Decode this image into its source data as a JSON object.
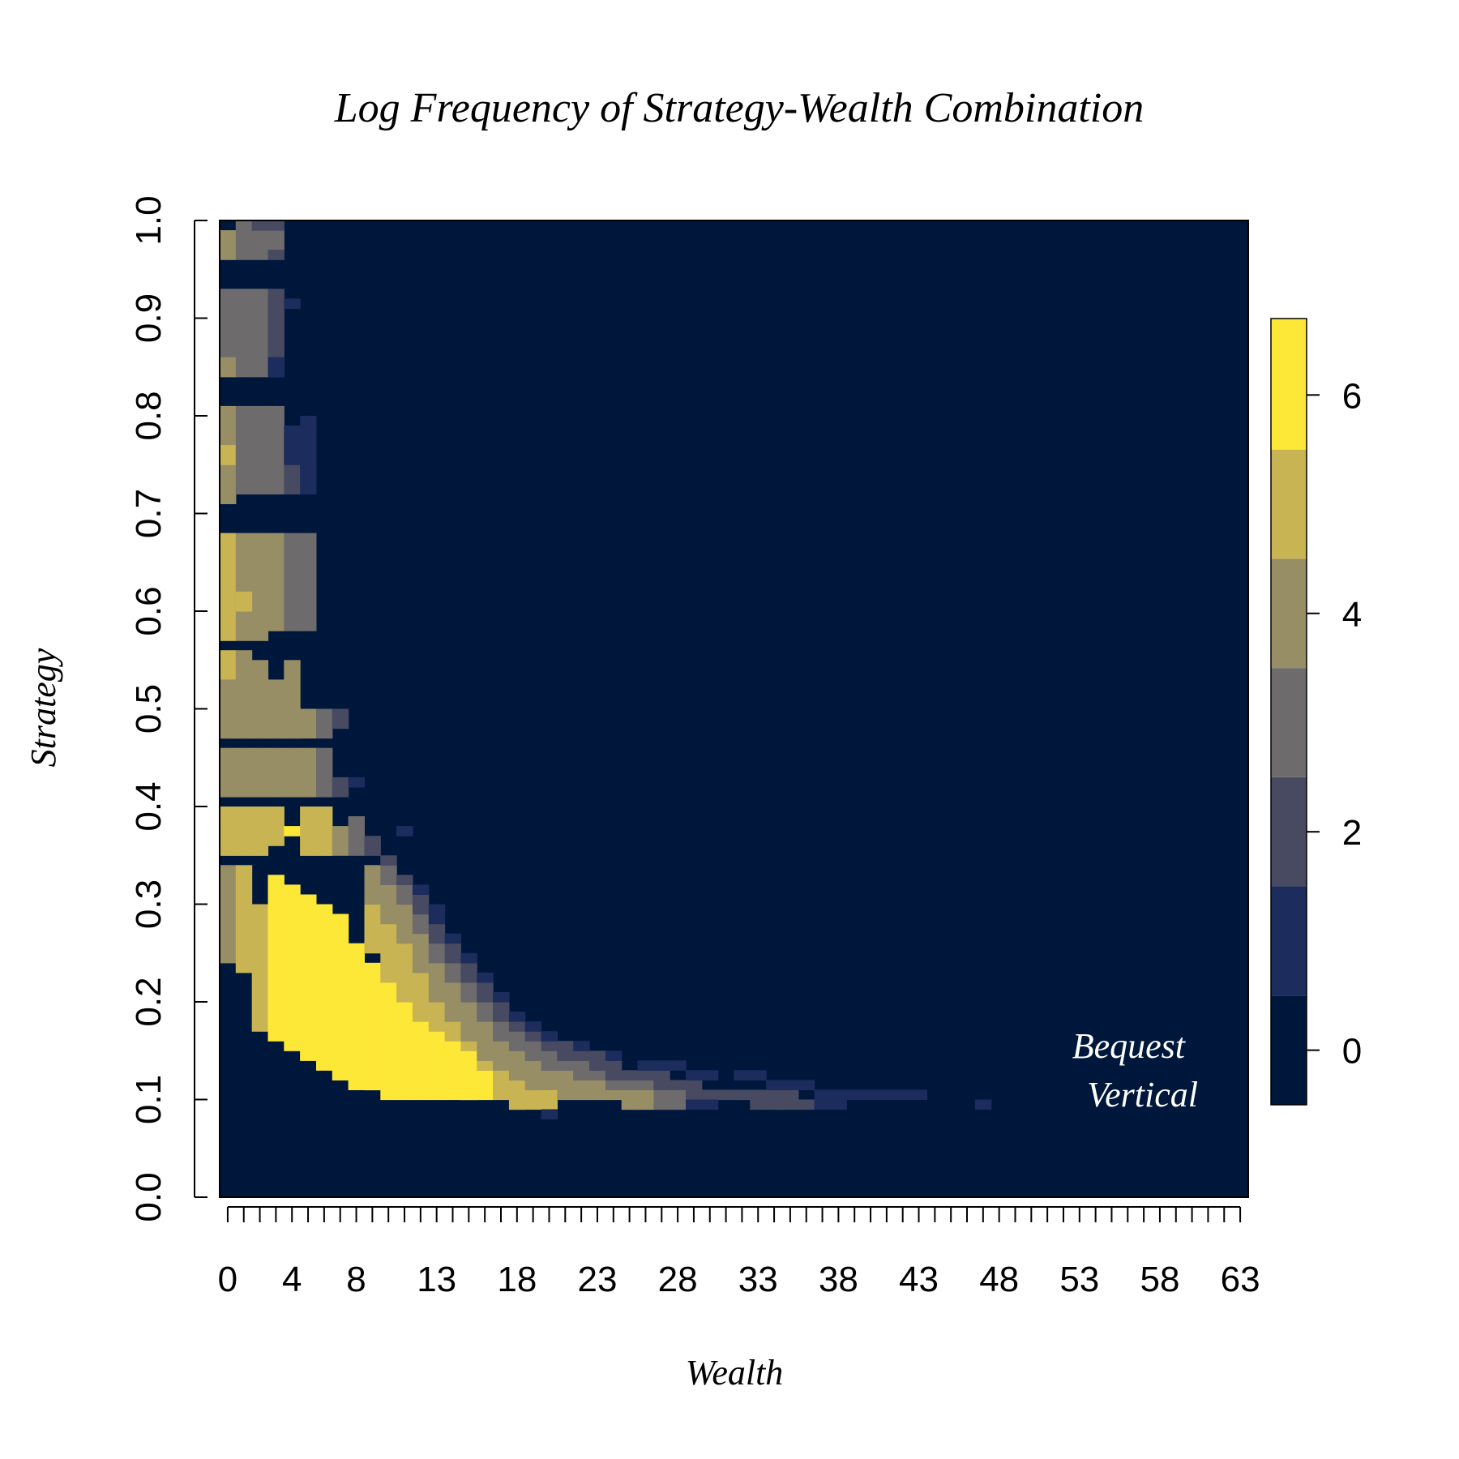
{
  "chart_data": {
    "type": "heatmap",
    "title": "Log Frequency of Strategy-Wealth Combination",
    "xlabel": "Wealth",
    "ylabel": "Strategy",
    "x_tick_labels": [
      "0",
      "4",
      "8",
      "13",
      "18",
      "23",
      "28",
      "33",
      "38",
      "43",
      "48",
      "53",
      "58",
      "63"
    ],
    "x_tick_values": [
      0,
      4,
      8,
      13,
      18,
      23,
      28,
      33,
      38,
      43,
      48,
      53,
      58,
      63
    ],
    "x_minor_ticks": [
      0,
      1,
      2,
      3,
      4,
      5,
      6,
      7,
      8,
      9,
      10,
      11,
      12,
      13,
      14,
      15,
      16,
      17,
      18,
      19,
      20,
      21,
      22,
      23,
      24,
      25,
      26,
      27,
      28,
      29,
      30,
      31,
      32,
      33,
      34,
      35,
      36,
      37,
      38,
      39,
      40,
      41,
      42,
      43,
      44,
      45,
      46,
      47,
      48,
      49,
      50,
      51,
      52,
      53,
      54,
      55,
      56,
      57,
      58,
      59,
      60,
      61,
      62,
      63
    ],
    "y_tick_labels": [
      "0.0",
      "0.1",
      "0.2",
      "0.3",
      "0.4",
      "0.5",
      "0.6",
      "0.7",
      "0.8",
      "0.9",
      "1.0"
    ],
    "y_tick_values": [
      0,
      0.1,
      0.2,
      0.3,
      0.4,
      0.5,
      0.6,
      0.7,
      0.8,
      0.9,
      1.0
    ],
    "xlim": [
      -0.5,
      63.5
    ],
    "ylim": [
      0,
      1
    ],
    "annotations": [
      "Bequest",
      "Vertical"
    ],
    "colorbar": {
      "ticks": [
        0,
        2,
        4,
        6
      ],
      "tick_labels": [
        "0",
        "2",
        "4",
        "6"
      ],
      "range": [
        -0.5,
        6.7
      ],
      "bands": [
        {
          "from": -0.5,
          "to": 0.5,
          "color": "#00173c"
        },
        {
          "from": 0.5,
          "to": 1.5,
          "color": "#1c2c5c"
        },
        {
          "from": 1.5,
          "to": 2.5,
          "color": "#474a61"
        },
        {
          "from": 2.5,
          "to": 3.5,
          "color": "#6d6b6c"
        },
        {
          "from": 3.5,
          "to": 4.5,
          "color": "#978e66"
        },
        {
          "from": 4.5,
          "to": 5.5,
          "color": "#c9b453"
        },
        {
          "from": 5.5,
          "to": 6.7,
          "color": "#fde737"
        }
      ]
    },
    "background_value": 0,
    "cells_note_format": "[wealth, strategy_lower_bound, strategy_upper_bound, log_frequency_level]",
    "cells": [
      [
        0,
        0.96,
        0.99,
        4
      ],
      [
        1,
        0.96,
        1.0,
        3
      ],
      [
        2,
        0.96,
        1.0,
        3
      ],
      [
        3,
        0.97,
        0.99,
        3
      ],
      [
        2,
        0.99,
        1.0,
        2
      ],
      [
        3,
        0.99,
        1.0,
        2
      ],
      [
        3,
        0.96,
        0.97,
        2
      ],
      [
        0,
        0.86,
        0.93,
        3
      ],
      [
        0,
        0.84,
        0.86,
        4
      ],
      [
        1,
        0.84,
        0.93,
        3
      ],
      [
        2,
        0.84,
        0.93,
        3
      ],
      [
        3,
        0.88,
        0.93,
        2
      ],
      [
        3,
        0.84,
        0.88,
        2
      ],
      [
        4,
        0.91,
        0.92,
        1
      ],
      [
        3,
        0.84,
        0.86,
        1
      ],
      [
        0,
        0.71,
        0.81,
        4
      ],
      [
        0,
        0.75,
        0.77,
        5
      ],
      [
        1,
        0.72,
        0.81,
        3
      ],
      [
        2,
        0.72,
        0.81,
        3
      ],
      [
        3,
        0.72,
        0.81,
        3
      ],
      [
        4,
        0.72,
        0.75,
        2
      ],
      [
        5,
        0.72,
        0.79,
        1
      ],
      [
        4,
        0.75,
        0.79,
        1
      ],
      [
        5,
        0.79,
        0.8,
        1
      ],
      [
        0,
        0.63,
        0.68,
        5
      ],
      [
        0,
        0.57,
        0.63,
        5
      ],
      [
        1,
        0.57,
        0.68,
        4
      ],
      [
        2,
        0.57,
        0.68,
        4
      ],
      [
        3,
        0.58,
        0.68,
        4
      ],
      [
        4,
        0.58,
        0.68,
        3
      ],
      [
        5,
        0.58,
        0.68,
        3
      ],
      [
        1,
        0.6,
        0.62,
        5
      ],
      [
        0,
        0.53,
        0.56,
        5
      ],
      [
        0,
        0.47,
        0.53,
        4
      ],
      [
        1,
        0.47,
        0.56,
        4
      ],
      [
        2,
        0.47,
        0.55,
        4
      ],
      [
        3,
        0.47,
        0.53,
        4
      ],
      [
        4,
        0.47,
        0.55,
        4
      ],
      [
        5,
        0.47,
        0.5,
        4
      ],
      [
        6,
        0.47,
        0.5,
        3
      ],
      [
        7,
        0.48,
        0.5,
        2
      ],
      [
        0,
        0.41,
        0.46,
        4
      ],
      [
        1,
        0.41,
        0.46,
        4
      ],
      [
        2,
        0.41,
        0.46,
        4
      ],
      [
        3,
        0.41,
        0.46,
        4
      ],
      [
        4,
        0.41,
        0.46,
        4
      ],
      [
        5,
        0.41,
        0.46,
        4
      ],
      [
        6,
        0.41,
        0.46,
        3
      ],
      [
        7,
        0.41,
        0.43,
        2
      ],
      [
        8,
        0.42,
        0.43,
        1
      ],
      [
        0,
        0.35,
        0.4,
        5
      ],
      [
        1,
        0.35,
        0.4,
        5
      ],
      [
        2,
        0.35,
        0.4,
        5
      ],
      [
        3,
        0.36,
        0.4,
        5
      ],
      [
        4,
        0.37,
        0.38,
        6
      ],
      [
        5,
        0.35,
        0.4,
        5
      ],
      [
        6,
        0.35,
        0.4,
        5
      ],
      [
        7,
        0.35,
        0.38,
        4
      ],
      [
        8,
        0.35,
        0.39,
        3
      ],
      [
        9,
        0.35,
        0.37,
        2
      ],
      [
        11,
        0.37,
        0.38,
        1
      ],
      [
        0,
        0.24,
        0.34,
        4
      ],
      [
        1,
        0.23,
        0.34,
        5
      ],
      [
        2,
        0.17,
        0.3,
        5
      ],
      [
        3,
        0.16,
        0.33,
        6
      ],
      [
        4,
        0.15,
        0.32,
        6
      ],
      [
        5,
        0.14,
        0.31,
        6
      ],
      [
        6,
        0.13,
        0.3,
        6
      ],
      [
        7,
        0.12,
        0.29,
        6
      ],
      [
        8,
        0.11,
        0.26,
        6
      ],
      [
        9,
        0.11,
        0.24,
        6
      ],
      [
        10,
        0.1,
        0.22,
        6
      ],
      [
        11,
        0.1,
        0.2,
        6
      ],
      [
        12,
        0.1,
        0.18,
        6
      ],
      [
        13,
        0.1,
        0.17,
        6
      ],
      [
        14,
        0.1,
        0.16,
        6
      ],
      [
        15,
        0.1,
        0.15,
        6
      ],
      [
        16,
        0.1,
        0.13,
        6
      ],
      [
        9,
        0.25,
        0.32,
        5
      ],
      [
        10,
        0.22,
        0.3,
        5
      ],
      [
        11,
        0.2,
        0.28,
        5
      ],
      [
        12,
        0.18,
        0.25,
        5
      ],
      [
        13,
        0.17,
        0.22,
        5
      ],
      [
        14,
        0.16,
        0.2,
        5
      ],
      [
        15,
        0.15,
        0.19,
        5
      ],
      [
        16,
        0.13,
        0.17,
        5
      ],
      [
        17,
        0.1,
        0.16,
        5
      ],
      [
        18,
        0.09,
        0.14,
        5
      ],
      [
        19,
        0.09,
        0.12,
        5
      ],
      [
        20,
        0.09,
        0.11,
        5
      ],
      [
        9,
        0.3,
        0.34,
        4
      ],
      [
        10,
        0.28,
        0.32,
        4
      ],
      [
        11,
        0.26,
        0.3,
        4
      ],
      [
        12,
        0.23,
        0.27,
        4
      ],
      [
        13,
        0.2,
        0.24,
        4
      ],
      [
        14,
        0.18,
        0.22,
        4
      ],
      [
        15,
        0.16,
        0.2,
        4
      ],
      [
        16,
        0.14,
        0.18,
        4
      ],
      [
        17,
        0.13,
        0.16,
        4
      ],
      [
        18,
        0.12,
        0.15,
        4
      ],
      [
        19,
        0.11,
        0.14,
        4
      ],
      [
        20,
        0.11,
        0.13,
        4
      ],
      [
        21,
        0.1,
        0.13,
        4
      ],
      [
        22,
        0.1,
        0.12,
        4
      ],
      [
        23,
        0.1,
        0.12,
        4
      ],
      [
        24,
        0.1,
        0.11,
        4
      ],
      [
        25,
        0.09,
        0.11,
        4
      ],
      [
        26,
        0.09,
        0.11,
        4
      ],
      [
        10,
        0.32,
        0.34,
        3
      ],
      [
        11,
        0.3,
        0.32,
        3
      ],
      [
        12,
        0.27,
        0.29,
        3
      ],
      [
        13,
        0.24,
        0.26,
        3
      ],
      [
        14,
        0.22,
        0.24,
        3
      ],
      [
        15,
        0.2,
        0.22,
        3
      ],
      [
        16,
        0.18,
        0.2,
        3
      ],
      [
        17,
        0.16,
        0.18,
        3
      ],
      [
        18,
        0.15,
        0.17,
        3
      ],
      [
        19,
        0.14,
        0.16,
        3
      ],
      [
        20,
        0.13,
        0.15,
        3
      ],
      [
        21,
        0.13,
        0.15,
        3
      ],
      [
        22,
        0.12,
        0.14,
        3
      ],
      [
        23,
        0.12,
        0.14,
        3
      ],
      [
        24,
        0.11,
        0.13,
        3
      ],
      [
        25,
        0.11,
        0.12,
        3
      ],
      [
        26,
        0.11,
        0.12,
        3
      ],
      [
        27,
        0.09,
        0.11,
        3
      ],
      [
        28,
        0.09,
        0.11,
        3
      ],
      [
        10,
        0.34,
        0.35,
        2
      ],
      [
        11,
        0.32,
        0.33,
        2
      ],
      [
        12,
        0.29,
        0.31,
        2
      ],
      [
        13,
        0.26,
        0.28,
        2
      ],
      [
        14,
        0.24,
        0.26,
        2
      ],
      [
        15,
        0.22,
        0.24,
        2
      ],
      [
        16,
        0.2,
        0.22,
        2
      ],
      [
        17,
        0.18,
        0.2,
        2
      ],
      [
        18,
        0.17,
        0.18,
        2
      ],
      [
        19,
        0.16,
        0.17,
        2
      ],
      [
        20,
        0.15,
        0.16,
        2
      ],
      [
        21,
        0.14,
        0.16,
        2
      ],
      [
        22,
        0.14,
        0.15,
        2
      ],
      [
        23,
        0.13,
        0.15,
        2
      ],
      [
        24,
        0.12,
        0.14,
        2
      ],
      [
        25,
        0.12,
        0.13,
        2
      ],
      [
        26,
        0.12,
        0.13,
        2
      ],
      [
        27,
        0.11,
        0.13,
        2
      ],
      [
        28,
        0.11,
        0.12,
        2
      ],
      [
        29,
        0.1,
        0.12,
        2
      ],
      [
        30,
        0.1,
        0.11,
        2
      ],
      [
        31,
        0.1,
        0.11,
        2
      ],
      [
        32,
        0.1,
        0.11,
        2
      ],
      [
        33,
        0.09,
        0.11,
        2
      ],
      [
        34,
        0.09,
        0.11,
        2
      ],
      [
        35,
        0.09,
        0.11,
        2
      ],
      [
        36,
        0.09,
        0.1,
        2
      ],
      [
        12,
        0.31,
        0.32,
        1
      ],
      [
        13,
        0.28,
        0.3,
        1
      ],
      [
        14,
        0.26,
        0.27,
        1
      ],
      [
        15,
        0.24,
        0.25,
        1
      ],
      [
        16,
        0.22,
        0.23,
        1
      ],
      [
        17,
        0.2,
        0.21,
        1
      ],
      [
        18,
        0.18,
        0.19,
        1
      ],
      [
        19,
        0.17,
        0.18,
        1
      ],
      [
        20,
        0.16,
        0.17,
        1
      ],
      [
        22,
        0.15,
        0.16,
        1
      ],
      [
        24,
        0.14,
        0.15,
        1
      ],
      [
        26,
        0.13,
        0.14,
        1
      ],
      [
        27,
        0.13,
        0.14,
        1
      ],
      [
        28,
        0.13,
        0.14,
        1
      ],
      [
        29,
        0.12,
        0.13,
        1
      ],
      [
        30,
        0.12,
        0.13,
        1
      ],
      [
        32,
        0.12,
        0.13,
        1
      ],
      [
        33,
        0.12,
        0.13,
        1
      ],
      [
        34,
        0.11,
        0.12,
        1
      ],
      [
        35,
        0.11,
        0.12,
        1
      ],
      [
        36,
        0.11,
        0.12,
        1
      ],
      [
        37,
        0.1,
        0.11,
        1
      ],
      [
        38,
        0.1,
        0.11,
        1
      ],
      [
        39,
        0.1,
        0.11,
        1
      ],
      [
        40,
        0.1,
        0.11,
        1
      ],
      [
        41,
        0.1,
        0.11,
        1
      ],
      [
        42,
        0.1,
        0.11,
        1
      ],
      [
        43,
        0.1,
        0.11,
        1
      ],
      [
        47,
        0.09,
        0.1,
        1
      ],
      [
        29,
        0.09,
        0.1,
        1
      ],
      [
        30,
        0.09,
        0.1,
        1
      ],
      [
        37,
        0.09,
        0.1,
        1
      ],
      [
        38,
        0.09,
        0.1,
        1
      ],
      [
        20,
        0.08,
        0.09,
        1
      ]
    ]
  }
}
